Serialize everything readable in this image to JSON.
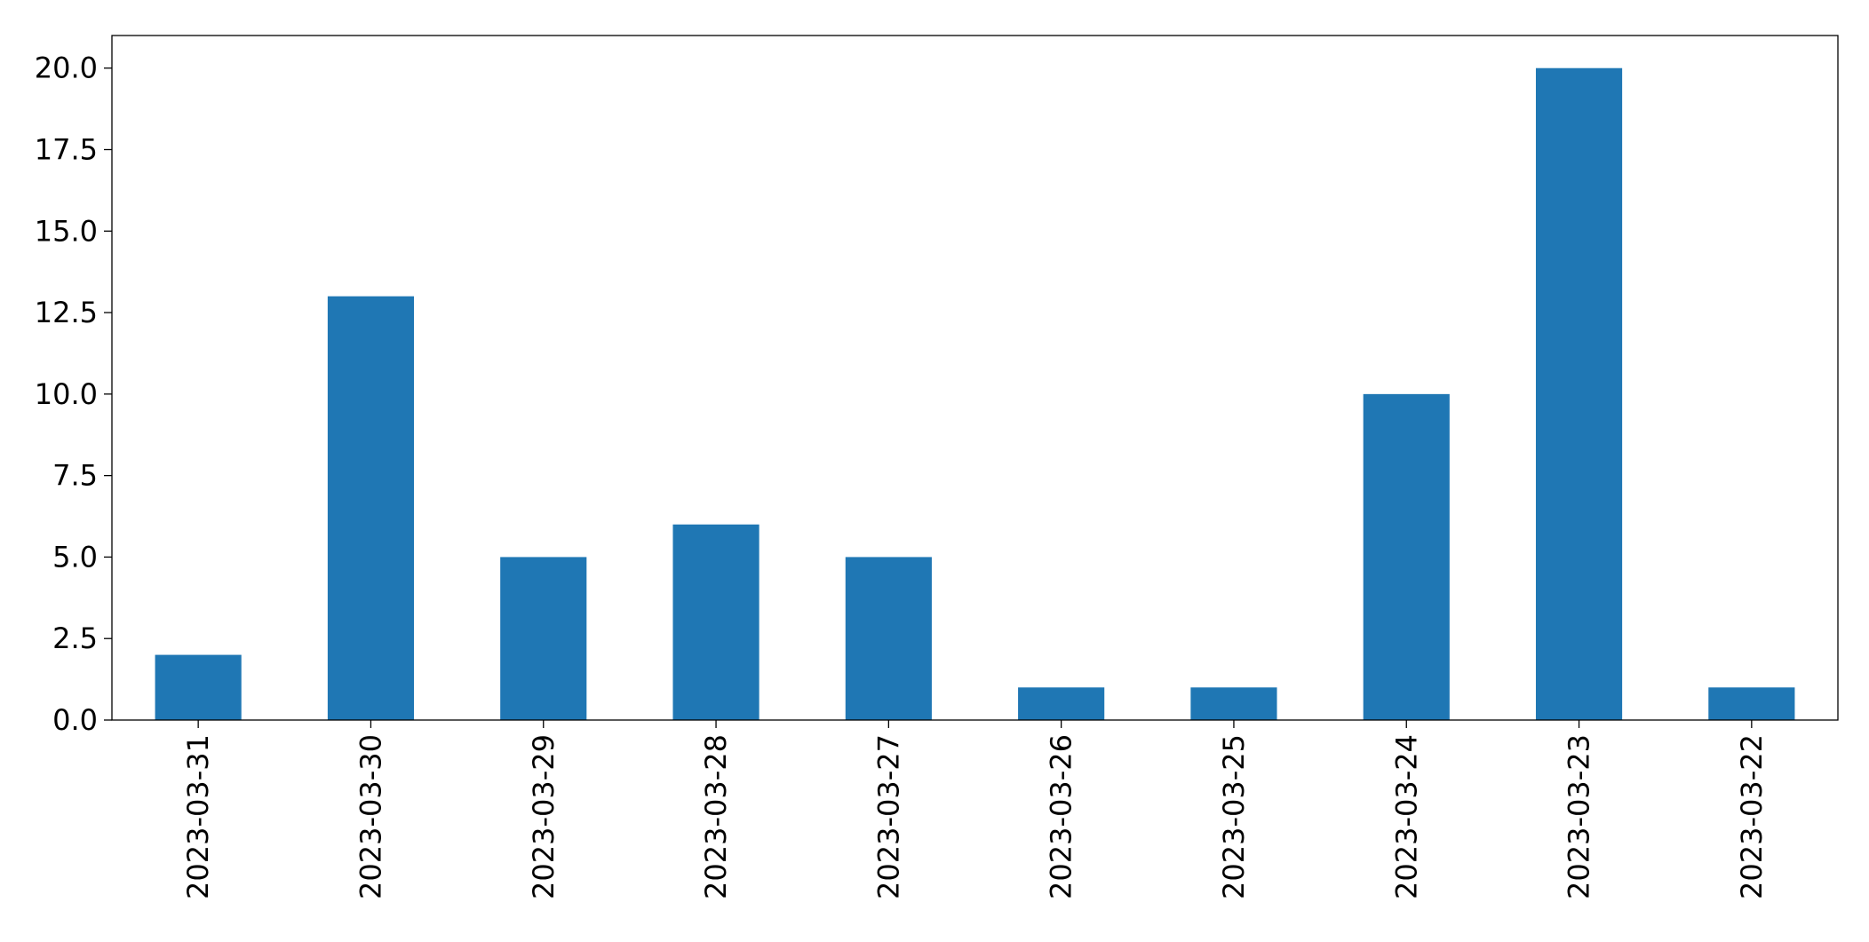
{
  "chart_data": {
    "type": "bar",
    "categories": [
      "2023-03-31",
      "2023-03-30",
      "2023-03-29",
      "2023-03-28",
      "2023-03-27",
      "2023-03-26",
      "2023-03-25",
      "2023-03-24",
      "2023-03-23",
      "2023-03-22"
    ],
    "values": [
      2,
      13,
      5,
      6,
      5,
      1,
      1,
      10,
      20,
      1
    ],
    "title": "",
    "xlabel": "",
    "ylabel": "",
    "ylim": [
      0,
      21
    ],
    "yticks": [
      0,
      2.5,
      5,
      7.5,
      10,
      12.5,
      15,
      17.5,
      20
    ],
    "ytick_labels": [
      "0.0",
      "2.5",
      "5.0",
      "7.5",
      "10.0",
      "12.5",
      "15.0",
      "17.5",
      "20.0"
    ],
    "x_tick_rotation": "vertical",
    "grid": false,
    "legend": "none",
    "bar_color": "#1f77b4"
  }
}
